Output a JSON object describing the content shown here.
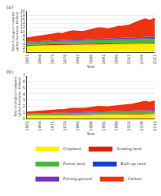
{
  "chart_data": [
    {
      "type": "area",
      "stacked": true,
      "x": [
        1961,
        1962,
        1963,
        1964,
        1965,
        1966,
        1967,
        1968,
        1969,
        1970,
        1971,
        1972,
        1973,
        1974,
        1975,
        1976,
        1977,
        1978,
        1979,
        1980,
        1981,
        1982,
        1983,
        1984,
        1985,
        1986,
        1987,
        1988,
        1989,
        1990,
        1991,
        1992,
        1993,
        1994,
        1995,
        1996,
        1997,
        1998,
        1999,
        2000,
        2001,
        2002,
        2003,
        2004,
        2005,
        2006,
        2007,
        2008,
        2009,
        2010,
        2011
      ],
      "xlabel": "Year",
      "ylabel": "Total Ecological Footprint (global hectares, billions)",
      "xlim": [
        1961,
        2011
      ],
      "xticks": [
        1961,
        1966,
        1971,
        1976,
        1981,
        1986,
        1991,
        1996,
        2001,
        2006,
        2011
      ],
      "ylim": [
        0,
        20
      ],
      "yticks": [
        0,
        2,
        4,
        6,
        8,
        10,
        12,
        14,
        16,
        18,
        20
      ],
      "grid": true,
      "legend": "bottom",
      "annotations": [
        "(a)"
      ],
      "series": [
        {
          "name": "Cropland",
          "color": "#FFEE00",
          "values": [
            3.0,
            3.05,
            3.08,
            3.1,
            3.12,
            3.15,
            3.17,
            3.2,
            3.22,
            3.25,
            3.27,
            3.3,
            3.32,
            3.34,
            3.35,
            3.38,
            3.4,
            3.42,
            3.44,
            3.46,
            3.48,
            3.5,
            3.52,
            3.54,
            3.56,
            3.58,
            3.6,
            3.62,
            3.64,
            3.66,
            3.68,
            3.7,
            3.72,
            3.74,
            3.76,
            3.78,
            3.8,
            3.82,
            3.84,
            3.86,
            3.88,
            3.9,
            3.92,
            3.94,
            3.96,
            3.98,
            4.0,
            4.02,
            4.04,
            4.06,
            4.08
          ]
        },
        {
          "name": "Grazing land",
          "color": "#DD2200",
          "values": [
            0.45,
            0.45,
            0.46,
            0.46,
            0.46,
            0.47,
            0.47,
            0.47,
            0.47,
            0.47,
            0.47,
            0.47,
            0.47,
            0.47,
            0.47,
            0.47,
            0.47,
            0.47,
            0.47,
            0.46,
            0.46,
            0.46,
            0.46,
            0.46,
            0.46,
            0.46,
            0.46,
            0.46,
            0.46,
            0.46,
            0.46,
            0.46,
            0.46,
            0.46,
            0.46,
            0.46,
            0.46,
            0.46,
            0.46,
            0.46,
            0.46,
            0.46,
            0.46,
            0.46,
            0.46,
            0.46,
            0.46,
            0.46,
            0.46,
            0.46,
            0.46
          ]
        },
        {
          "name": "Forest land",
          "color": "#44BB33",
          "values": [
            1.1,
            1.12,
            1.14,
            1.16,
            1.17,
            1.18,
            1.2,
            1.22,
            1.24,
            1.26,
            1.28,
            1.3,
            1.32,
            1.33,
            1.34,
            1.35,
            1.37,
            1.39,
            1.41,
            1.43,
            1.44,
            1.46,
            1.47,
            1.49,
            1.51,
            1.53,
            1.55,
            1.57,
            1.59,
            1.61,
            1.63,
            1.65,
            1.66,
            1.67,
            1.68,
            1.7,
            1.72,
            1.74,
            1.75,
            1.76,
            1.77,
            1.78,
            1.8,
            1.82,
            1.84,
            1.86,
            1.88,
            1.9,
            1.92,
            1.94,
            1.96
          ]
        },
        {
          "name": "Built-up land",
          "color": "#1144CC",
          "values": [
            0.18,
            0.18,
            0.19,
            0.19,
            0.19,
            0.19,
            0.2,
            0.2,
            0.2,
            0.2,
            0.21,
            0.21,
            0.21,
            0.21,
            0.21,
            0.22,
            0.22,
            0.22,
            0.22,
            0.22,
            0.23,
            0.23,
            0.23,
            0.23,
            0.24,
            0.24,
            0.24,
            0.24,
            0.25,
            0.25,
            0.25,
            0.25,
            0.26,
            0.26,
            0.26,
            0.27,
            0.27,
            0.27,
            0.28,
            0.28,
            0.28,
            0.29,
            0.29,
            0.3,
            0.3,
            0.31,
            0.31,
            0.32,
            0.32,
            0.33,
            0.34
          ]
        },
        {
          "name": "Fishing ground",
          "color": "#7733BB",
          "values": [
            0.3,
            0.31,
            0.32,
            0.33,
            0.34,
            0.35,
            0.36,
            0.37,
            0.38,
            0.39,
            0.4,
            0.41,
            0.42,
            0.42,
            0.43,
            0.43,
            0.44,
            0.45,
            0.46,
            0.47,
            0.48,
            0.49,
            0.49,
            0.5,
            0.51,
            0.52,
            0.53,
            0.54,
            0.55,
            0.55,
            0.56,
            0.57,
            0.58,
            0.59,
            0.6,
            0.61,
            0.61,
            0.62,
            0.62,
            0.63,
            0.63,
            0.64,
            0.64,
            0.65,
            0.66,
            0.67,
            0.67,
            0.68,
            0.68,
            0.69,
            0.69
          ]
        },
        {
          "name": "Carbon",
          "color": "#EE3311",
          "values": [
            2.0,
            2.1,
            2.2,
            2.3,
            2.45,
            2.6,
            2.7,
            2.85,
            3.0,
            3.15,
            3.3,
            3.5,
            3.7,
            3.6,
            3.5,
            3.9,
            4.1,
            4.3,
            4.6,
            4.4,
            4.3,
            4.1,
            4.1,
            4.3,
            4.5,
            4.8,
            5.1,
            5.4,
            5.6,
            5.4,
            5.2,
            5.0,
            4.9,
            5.2,
            5.4,
            5.8,
            6.0,
            5.8,
            5.9,
            6.2,
            6.3,
            6.8,
            7.3,
            8.0,
            8.2,
            8.6,
            9.1,
            8.8,
            8.2,
            8.7,
            9.2
          ]
        }
      ]
    },
    {
      "type": "area",
      "stacked": true,
      "x": [
        1961,
        1962,
        1963,
        1964,
        1965,
        1966,
        1967,
        1968,
        1969,
        1970,
        1971,
        1972,
        1973,
        1974,
        1975,
        1976,
        1977,
        1978,
        1979,
        1980,
        1981,
        1982,
        1983,
        1984,
        1985,
        1986,
        1987,
        1988,
        1989,
        1990,
        1991,
        1992,
        1993,
        1994,
        1995,
        1996,
        1997,
        1998,
        1999,
        2000,
        2001,
        2002,
        2003,
        2004,
        2005,
        2006,
        2007,
        2008,
        2009,
        2010,
        2011
      ],
      "xlabel": "Year",
      "ylabel": "Total Ecological Footprint (global hectares, billions)",
      "xlim": [
        1961,
        2011
      ],
      "xticks": [
        1961,
        1966,
        1971,
        1976,
        1981,
        1986,
        1991,
        1996,
        2001,
        2006,
        2011
      ],
      "ylim": [
        0,
        7
      ],
      "yticks": [
        0,
        1,
        2,
        3,
        4,
        5,
        6,
        7
      ],
      "grid": true,
      "annotations": [
        "(b)"
      ],
      "series": [
        {
          "name": "Cropland",
          "color": "#FFEE00",
          "values": [
            0.5,
            0.5,
            0.51,
            0.51,
            0.51,
            0.51,
            0.52,
            0.52,
            0.52,
            0.52,
            0.53,
            0.53,
            0.53,
            0.54,
            0.54,
            0.54,
            0.55,
            0.55,
            0.56,
            0.56,
            0.57,
            0.57,
            0.58,
            0.58,
            0.59,
            0.59,
            0.6,
            0.6,
            0.61,
            0.61,
            0.62,
            0.62,
            0.63,
            0.63,
            0.64,
            0.64,
            0.65,
            0.65,
            0.66,
            0.66,
            0.67,
            0.67,
            0.68,
            0.68,
            0.69,
            0.69,
            0.7,
            0.7,
            0.71,
            0.72,
            0.73
          ]
        },
        {
          "name": "Grazing land",
          "color": "#DD2200",
          "values": [
            0.07,
            0.07,
            0.07,
            0.07,
            0.07,
            0.07,
            0.07,
            0.07,
            0.07,
            0.07,
            0.07,
            0.07,
            0.07,
            0.07,
            0.07,
            0.07,
            0.07,
            0.07,
            0.07,
            0.07,
            0.07,
            0.07,
            0.07,
            0.07,
            0.07,
            0.07,
            0.07,
            0.07,
            0.07,
            0.07,
            0.07,
            0.07,
            0.07,
            0.07,
            0.07,
            0.07,
            0.07,
            0.07,
            0.07,
            0.07,
            0.07,
            0.07,
            0.07,
            0.07,
            0.07,
            0.07,
            0.07,
            0.07,
            0.07,
            0.07,
            0.07
          ]
        },
        {
          "name": "Forest land",
          "color": "#44BB33",
          "values": [
            0.18,
            0.18,
            0.19,
            0.19,
            0.19,
            0.2,
            0.2,
            0.2,
            0.21,
            0.21,
            0.22,
            0.22,
            0.22,
            0.23,
            0.23,
            0.24,
            0.24,
            0.25,
            0.25,
            0.26,
            0.26,
            0.27,
            0.27,
            0.28,
            0.28,
            0.29,
            0.29,
            0.3,
            0.3,
            0.31,
            0.31,
            0.32,
            0.32,
            0.33,
            0.33,
            0.34,
            0.34,
            0.35,
            0.35,
            0.36,
            0.36,
            0.37,
            0.37,
            0.38,
            0.38,
            0.39,
            0.39,
            0.4,
            0.4,
            0.41,
            0.42
          ]
        },
        {
          "name": "Built-up land",
          "color": "#1144CC",
          "values": [
            0.025,
            0.025,
            0.026,
            0.026,
            0.027,
            0.027,
            0.028,
            0.028,
            0.029,
            0.029,
            0.03,
            0.03,
            0.031,
            0.031,
            0.032,
            0.032,
            0.033,
            0.033,
            0.034,
            0.034,
            0.035,
            0.035,
            0.036,
            0.036,
            0.037,
            0.037,
            0.038,
            0.038,
            0.039,
            0.039,
            0.04,
            0.04,
            0.041,
            0.041,
            0.042,
            0.042,
            0.043,
            0.043,
            0.044,
            0.044,
            0.045,
            0.045,
            0.046,
            0.046,
            0.047,
            0.047,
            0.048,
            0.048,
            0.049,
            0.05,
            0.051
          ]
        },
        {
          "name": "Fishing ground",
          "color": "#7733BB",
          "values": [
            0.05,
            0.05,
            0.055,
            0.055,
            0.06,
            0.06,
            0.065,
            0.065,
            0.07,
            0.07,
            0.075,
            0.075,
            0.08,
            0.08,
            0.085,
            0.085,
            0.09,
            0.09,
            0.095,
            0.095,
            0.1,
            0.1,
            0.1,
            0.105,
            0.105,
            0.11,
            0.11,
            0.11,
            0.115,
            0.115,
            0.115,
            0.12,
            0.12,
            0.12,
            0.125,
            0.125,
            0.125,
            0.13,
            0.13,
            0.13,
            0.13,
            0.13,
            0.13,
            0.135,
            0.135,
            0.135,
            0.14,
            0.14,
            0.14,
            0.14,
            0.14
          ]
        },
        {
          "name": "Carbon",
          "color": "#EE3311",
          "values": [
            0.3,
            0.32,
            0.34,
            0.36,
            0.38,
            0.41,
            0.43,
            0.46,
            0.48,
            0.51,
            0.54,
            0.57,
            0.61,
            0.59,
            0.57,
            0.64,
            0.67,
            0.71,
            0.76,
            0.72,
            0.7,
            0.67,
            0.67,
            0.7,
            0.74,
            0.79,
            0.84,
            0.89,
            0.92,
            0.89,
            0.86,
            0.82,
            0.81,
            0.86,
            0.89,
            0.96,
            0.99,
            0.96,
            0.97,
            1.02,
            1.04,
            1.12,
            1.21,
            1.32,
            1.35,
            1.42,
            1.5,
            1.46,
            1.36,
            1.44,
            1.52
          ]
        }
      ]
    }
  ]
}
